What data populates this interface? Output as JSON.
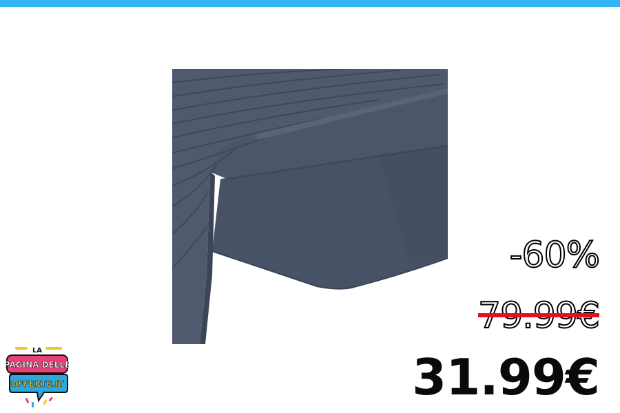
{
  "colors": {
    "top_bar": "#33b5f5",
    "product_fabric": "#4a5468",
    "strike": "#e8101a",
    "logo_pink": "#e8407a",
    "logo_blue": "#2aa9e0",
    "logo_yellow": "#f6c324"
  },
  "product": {
    "icon": "fitted-sheet-image"
  },
  "pricing": {
    "discount": "-60%",
    "old_price": "79.99€",
    "new_price": "31.99€"
  },
  "logo": {
    "line1": "LA",
    "line2": "PAGINA DELLE",
    "line3": "OFFERTE.IT"
  }
}
